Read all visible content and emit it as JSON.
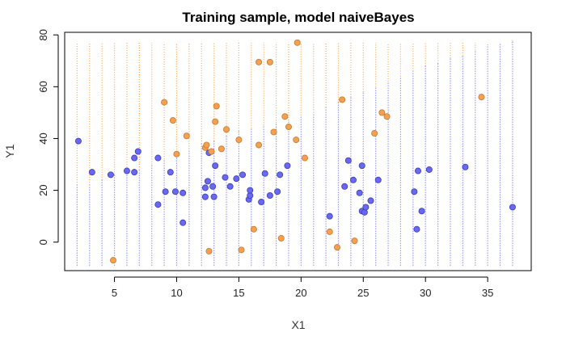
{
  "chart_data": {
    "type": "scatter",
    "title": "Training sample, model naiveBayes",
    "xlabel": "X1",
    "ylabel": "Y1",
    "xlim": [
      1,
      38.5
    ],
    "ylim": [
      -11,
      81
    ],
    "x_ticks": [
      5,
      10,
      15,
      20,
      25,
      30,
      35
    ],
    "y_ticks": [
      0,
      20,
      40,
      60,
      80
    ],
    "grid": false,
    "legend": "none",
    "colors": {
      "class_orange": "#ffa54f",
      "class_blue": "#6c6cff",
      "point_orange": "#f59f50",
      "point_blue": "#6868f0",
      "point_outline_orange": "#c47a30",
      "point_outline_blue": "#3c3cb8"
    },
    "decision_region": {
      "description_values": "boundary Y1 per dotted column; above boundary = orange class, below = blue class",
      "columns_x": [
        2,
        3,
        4,
        5,
        6,
        7,
        8,
        9,
        10,
        11,
        12,
        13,
        14,
        15,
        16,
        17,
        18,
        19,
        20,
        21,
        22,
        23,
        24,
        25,
        26,
        27,
        28,
        29,
        30,
        31,
        32,
        33,
        34,
        35,
        36,
        37
      ],
      "boundary_y": [
        22,
        22,
        24,
        26,
        27,
        28,
        30,
        32,
        34,
        36,
        38,
        39,
        41,
        43,
        44,
        45,
        46,
        47,
        49,
        50,
        52,
        54,
        56,
        58,
        60,
        62,
        64,
        66,
        68,
        69,
        71,
        72,
        74,
        76,
        77,
        78
      ],
      "y_min": -9,
      "y_max": 77
    },
    "series": [
      {
        "color": "#6868f0",
        "points": [
          [
            2.1,
            39
          ],
          [
            3.2,
            27
          ],
          [
            4.7,
            26
          ],
          [
            6.0,
            27.5
          ],
          [
            6.6,
            27
          ],
          [
            6.6,
            32.5
          ],
          [
            6.9,
            35
          ],
          [
            8.5,
            14.5
          ],
          [
            8.5,
            32.5
          ],
          [
            9.1,
            19.5
          ],
          [
            9.5,
            27
          ],
          [
            9.9,
            19.5
          ],
          [
            10.5,
            19
          ],
          [
            10.5,
            7.5
          ],
          [
            12.3,
            21
          ],
          [
            12.3,
            17.5
          ],
          [
            12.5,
            23.5
          ],
          [
            12.6,
            34.5
          ],
          [
            12.9,
            21.5
          ],
          [
            13.0,
            17.5
          ],
          [
            13.1,
            29.5
          ],
          [
            13.9,
            25
          ],
          [
            14.3,
            21.5
          ],
          [
            14.8,
            24.5
          ],
          [
            15.3,
            26
          ],
          [
            15.8,
            16.5
          ],
          [
            15.9,
            18
          ],
          [
            15.9,
            20
          ],
          [
            16.8,
            15.5
          ],
          [
            17.1,
            26.5
          ],
          [
            17.5,
            18
          ],
          [
            18.1,
            19.5
          ],
          [
            18.3,
            26
          ],
          [
            18.9,
            29.5
          ],
          [
            22.3,
            10
          ],
          [
            23.5,
            21.5
          ],
          [
            23.8,
            31.5
          ],
          [
            24.2,
            24
          ],
          [
            24.7,
            19
          ],
          [
            24.9,
            29.5
          ],
          [
            24.9,
            12
          ],
          [
            25.1,
            11.5
          ],
          [
            25.2,
            13.5
          ],
          [
            25.6,
            16
          ],
          [
            26.2,
            24
          ],
          [
            29.1,
            19.5
          ],
          [
            29.3,
            5
          ],
          [
            29.4,
            27.5
          ],
          [
            29.7,
            12
          ],
          [
            30.3,
            28
          ],
          [
            33.2,
            29
          ],
          [
            37.0,
            13.5
          ]
        ]
      },
      {
        "color": "#f59f50",
        "points": [
          [
            4.9,
            -7
          ],
          [
            9.0,
            54
          ],
          [
            9.7,
            47
          ],
          [
            10.0,
            34
          ],
          [
            10.8,
            41
          ],
          [
            12.3,
            36.5
          ],
          [
            12.4,
            37.5
          ],
          [
            12.6,
            -3.5
          ],
          [
            12.8,
            35
          ],
          [
            13.1,
            46.5
          ],
          [
            13.2,
            52.5
          ],
          [
            13.6,
            36
          ],
          [
            14.0,
            43.5
          ],
          [
            15.0,
            39.5
          ],
          [
            15.2,
            -3
          ],
          [
            16.2,
            5
          ],
          [
            16.6,
            37.5
          ],
          [
            16.6,
            69.5
          ],
          [
            17.5,
            69.5
          ],
          [
            17.8,
            42.5
          ],
          [
            18.4,
            1.5
          ],
          [
            18.7,
            48.5
          ],
          [
            19.0,
            44.5
          ],
          [
            19.6,
            39.5
          ],
          [
            19.7,
            77
          ],
          [
            20.3,
            32.5
          ],
          [
            22.3,
            4
          ],
          [
            22.9,
            -2
          ],
          [
            23.3,
            55
          ],
          [
            24.3,
            0.5
          ],
          [
            25.9,
            42
          ],
          [
            26.5,
            50
          ],
          [
            26.9,
            48.5
          ],
          [
            34.5,
            56
          ]
        ]
      }
    ]
  }
}
